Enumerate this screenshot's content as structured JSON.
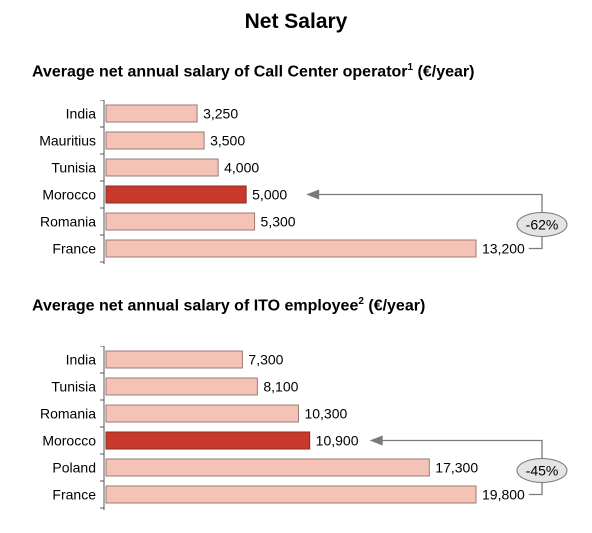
{
  "page_title": "Net Salary",
  "colors": {
    "bar": "#f5c2b6",
    "highlight": "#c8392c",
    "stroke": "#9a7b74",
    "arrow": "#7a7a7a",
    "badge_fill": "#e4e4e4"
  },
  "chart_data": [
    {
      "type": "bar",
      "title": "Average net annual salary of Call Center operator",
      "title_footnote": "1",
      "title_unit": "(€/year)",
      "categories": [
        "India",
        "Mauritius",
        "Tunisia",
        "Morocco",
        "Romania",
        "France"
      ],
      "values": [
        3250,
        3500,
        4000,
        5000,
        5300,
        13200
      ],
      "value_labels": [
        "3,250",
        "3,500",
        "4,000",
        "5,000",
        "5,300",
        "13,200"
      ],
      "highlight": "Morocco",
      "comparison": {
        "from": "France",
        "to": "Morocco",
        "label": "-62%"
      },
      "xlim": [
        0,
        13200
      ]
    },
    {
      "type": "bar",
      "title": "Average net annual salary of ITO employee",
      "title_footnote": "2",
      "title_unit": "(€/year)",
      "categories": [
        "India",
        "Tunisia",
        "Romania",
        "Morocco",
        "Poland",
        "France"
      ],
      "values": [
        7300,
        8100,
        10300,
        10900,
        17300,
        19800
      ],
      "value_labels": [
        "7,300",
        "8,100",
        "10,300",
        "10,900",
        "17,300",
        "19,800"
      ],
      "highlight": "Morocco",
      "comparison": {
        "from": "France",
        "to": "Morocco",
        "label": "-45%"
      },
      "xlim": [
        0,
        19800
      ]
    }
  ]
}
